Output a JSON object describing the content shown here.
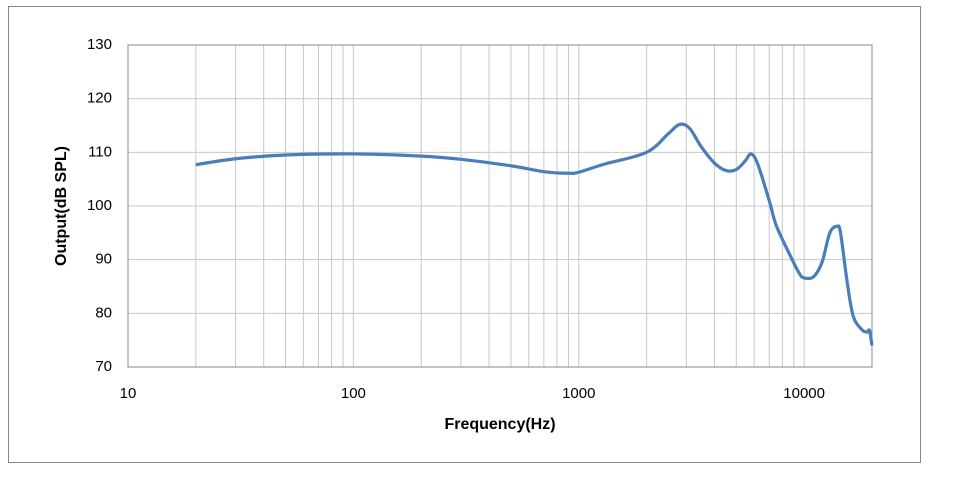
{
  "chart_data": {
    "type": "line",
    "x_label": "Frequency(Hz)",
    "y_label": "Output(dB SPL)",
    "x_scale": "log",
    "grid": true,
    "xlim": [
      10,
      20000
    ],
    "ylim": [
      70,
      130
    ],
    "xticks": [
      10,
      100,
      1000,
      10000
    ],
    "xminorticks": [
      20,
      30,
      40,
      50,
      60,
      70,
      80,
      90,
      200,
      300,
      400,
      500,
      600,
      700,
      800,
      900,
      2000,
      3000,
      4000,
      5000,
      6000,
      7000,
      8000,
      9000
    ],
    "yticks": [
      70,
      80,
      90,
      100,
      110,
      120,
      130
    ],
    "series": [
      {
        "color": "#4a7ebb",
        "x": [
          20,
          30,
          50,
          100,
          200,
          300,
          500,
          700,
          900,
          1000,
          1300,
          2000,
          2500,
          2800,
          3100,
          3500,
          4000,
          4500,
          5000,
          5500,
          5800,
          6200,
          7000,
          7500,
          8500,
          9500,
          10000,
          11000,
          12000,
          13000,
          14000,
          14500,
          15500,
          16500,
          18000,
          19000,
          19500,
          20000
        ],
        "values": [
          107.7,
          108.8,
          109.5,
          109.7,
          109.3,
          108.7,
          107.5,
          106.4,
          106.1,
          106.3,
          107.8,
          110,
          113.5,
          115.2,
          114.5,
          111,
          108,
          106.6,
          106.8,
          108.5,
          109.7,
          108,
          101,
          96.5,
          91.5,
          87.5,
          86.6,
          86.8,
          89.5,
          95,
          96.2,
          95,
          86,
          79.5,
          77,
          76.5,
          76.8,
          74
        ]
      }
    ]
  }
}
